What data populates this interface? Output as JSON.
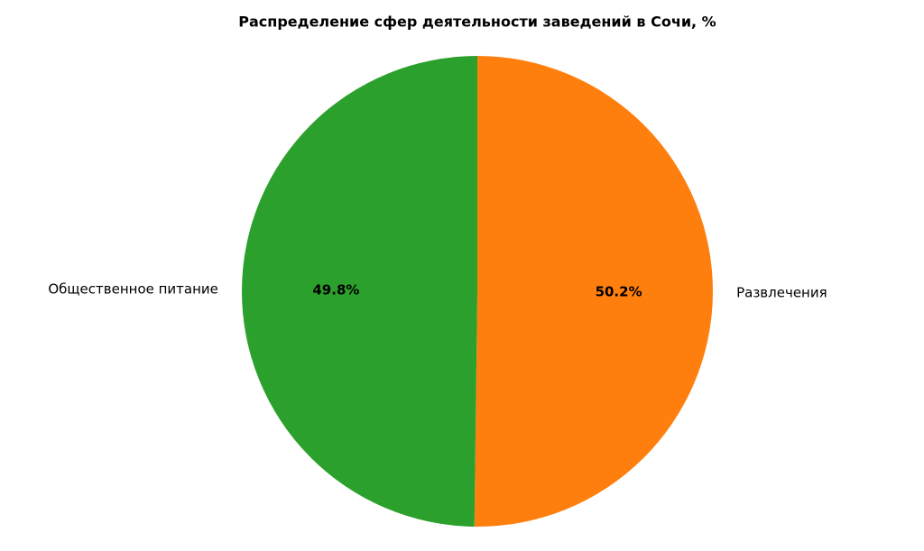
{
  "chart_data": {
    "type": "pie",
    "title": "Распределение сфер деятельности заведений в Сочи, %",
    "categories": [
      "Развлечения",
      "Общественное питание"
    ],
    "values": [
      50.2,
      49.8
    ],
    "value_labels": [
      "50.2%",
      "49.8%"
    ],
    "colors": [
      "#ff7f0e",
      "#2ca02c"
    ]
  }
}
